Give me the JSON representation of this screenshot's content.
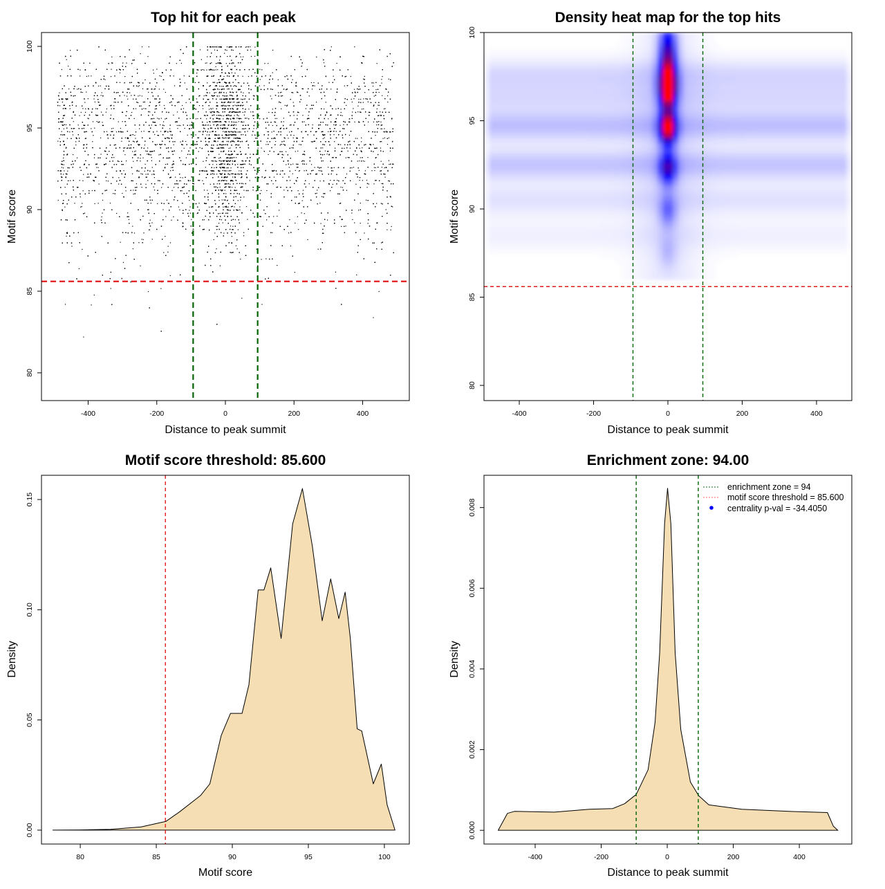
{
  "chart_data": [
    {
      "type": "scatter",
      "title": "Top hit for each peak",
      "xlabel": "Distance to peak summit",
      "ylabel": "Motif score",
      "xlim": [
        -536,
        536
      ],
      "ylim": [
        78.3,
        100.85
      ],
      "xticks": [
        -400,
        -200,
        0,
        200,
        400
      ],
      "yticks": [
        80,
        85,
        90,
        95,
        100
      ],
      "vlines": {
        "values": [
          -94,
          94
        ],
        "color": "#006400",
        "style": "dashed"
      },
      "hline": {
        "value": 85.6,
        "color": "#e31a1c",
        "style": "dashed"
      },
      "point_color": "#000000",
      "grid": false
    },
    {
      "type": "heatmap",
      "title": "Density heat map for the top hits",
      "xlabel": "Distance to peak summit",
      "ylabel": "Motif score",
      "xlim": [
        -495,
        495
      ],
      "ylim": [
        79.14,
        100
      ],
      "xticks": [
        -400,
        -200,
        0,
        200,
        400
      ],
      "yticks": [
        80,
        85,
        90,
        95,
        100
      ],
      "colormap": [
        "#ffffff",
        "#0000ff",
        "#ff0000"
      ],
      "hotspots": [
        {
          "x": 0,
          "y": 99.7,
          "intensity": 0.35
        },
        {
          "x": 0,
          "y": 98.6,
          "intensity": 0.5
        },
        {
          "x": 0,
          "y": 97.4,
          "intensity": 0.85
        },
        {
          "x": 0,
          "y": 96.5,
          "intensity": 0.82
        },
        {
          "x": 0,
          "y": 94.6,
          "intensity": 1.0
        },
        {
          "x": 0,
          "y": 92.3,
          "intensity": 0.55
        },
        {
          "x": 0,
          "y": 89.9,
          "intensity": 0.25
        },
        {
          "x": 0,
          "y": 87.6,
          "intensity": 0.1
        }
      ],
      "bands": [
        {
          "y": 97.6,
          "intensity": 0.08
        },
        {
          "y": 96.3,
          "intensity": 0.07
        },
        {
          "y": 94.7,
          "intensity": 0.13
        },
        {
          "y": 92.5,
          "intensity": 0.12
        },
        {
          "y": 90.5,
          "intensity": 0.06
        },
        {
          "y": 88.5,
          "intensity": 0.03
        }
      ],
      "vlines": {
        "values": [
          -94,
          94
        ],
        "color": "#006400",
        "style": "dashed"
      },
      "hline": {
        "value": 85.6,
        "color": "#e31a1c",
        "style": "dashed"
      }
    },
    {
      "type": "area",
      "title": "Motif score threshold: 85.600",
      "xlabel": "Motif score",
      "ylabel": "Density",
      "xlim": [
        77.45,
        101.64
      ],
      "ylim": [
        -0.0063,
        0.161
      ],
      "xticks": [
        80,
        85,
        90,
        95,
        100
      ],
      "yticks": [
        0.0,
        0.05,
        0.1,
        0.15
      ],
      "ytick_labels": [
        "0.00",
        "0.05",
        "0.10",
        "0.15"
      ],
      "fill": "#f5deb3",
      "vline": {
        "value": 85.6,
        "color": "#e31a1c",
        "style": "dashed"
      },
      "x": [
        78.2,
        80,
        82,
        84,
        85.64,
        86.55,
        87.91,
        88.52,
        89.27,
        89.88,
        90.64,
        91.09,
        91.7,
        92.08,
        92.53,
        93.21,
        93.97,
        94.61,
        95.26,
        95.91,
        96.47,
        97.0,
        97.42,
        97.76,
        98.21,
        98.51,
        99.27,
        99.8,
        100.18,
        100.7
      ],
      "y": [
        0,
        0.0001,
        0.0004,
        0.0015,
        0.004,
        0.0084,
        0.0157,
        0.021,
        0.043,
        0.053,
        0.053,
        0.066,
        0.109,
        0.109,
        0.119,
        0.087,
        0.139,
        0.155,
        0.129,
        0.095,
        0.114,
        0.096,
        0.108,
        0.087,
        0.046,
        0.045,
        0.021,
        0.03,
        0.0115,
        0
      ]
    },
    {
      "type": "area",
      "title": "Enrichment zone: 94.00",
      "xlabel": "Distance to peak summit",
      "ylabel": "Density",
      "xlim": [
        -555,
        559
      ],
      "ylim": [
        -0.00034,
        0.0088
      ],
      "xticks": [
        -400,
        -200,
        0,
        200,
        400
      ],
      "yticks": [
        0,
        0.002,
        0.004,
        0.006,
        0.008
      ],
      "ytick_labels": [
        "0.000",
        "0.002",
        "0.004",
        "0.006",
        "0.008"
      ],
      "fill": "#f5deb3",
      "vlines": {
        "values": [
          -94,
          94
        ],
        "color": "#006400",
        "style": "dashed"
      },
      "x": [
        -512,
        -484,
        -463,
        -342,
        -236,
        -165,
        -129,
        -94,
        -58,
        -37,
        -23,
        -8,
        1,
        11,
        24,
        41,
        70,
        95,
        126,
        226,
        368,
        485,
        503,
        517
      ],
      "y": [
        0,
        0.00042,
        0.00047,
        0.00045,
        0.00052,
        0.00054,
        0.00066,
        0.00089,
        0.0015,
        0.00267,
        0.0044,
        0.0076,
        0.00848,
        0.0076,
        0.0044,
        0.0025,
        0.0012,
        0.00086,
        0.00063,
        0.00052,
        0.00047,
        0.00044,
        0.0001,
        0
      ],
      "legend": {
        "placement": "top-right",
        "entries": [
          {
            "label": "enrichment zone = 94",
            "color": "#006400",
            "symbol": "dotted-line"
          },
          {
            "label": "motif score threshold = 85.600",
            "color": "#ff6666",
            "symbol": "dotted-line"
          },
          {
            "label": "centrality p-val = -34.4050",
            "color": "#0000ff",
            "symbol": "dot"
          }
        ]
      }
    }
  ]
}
